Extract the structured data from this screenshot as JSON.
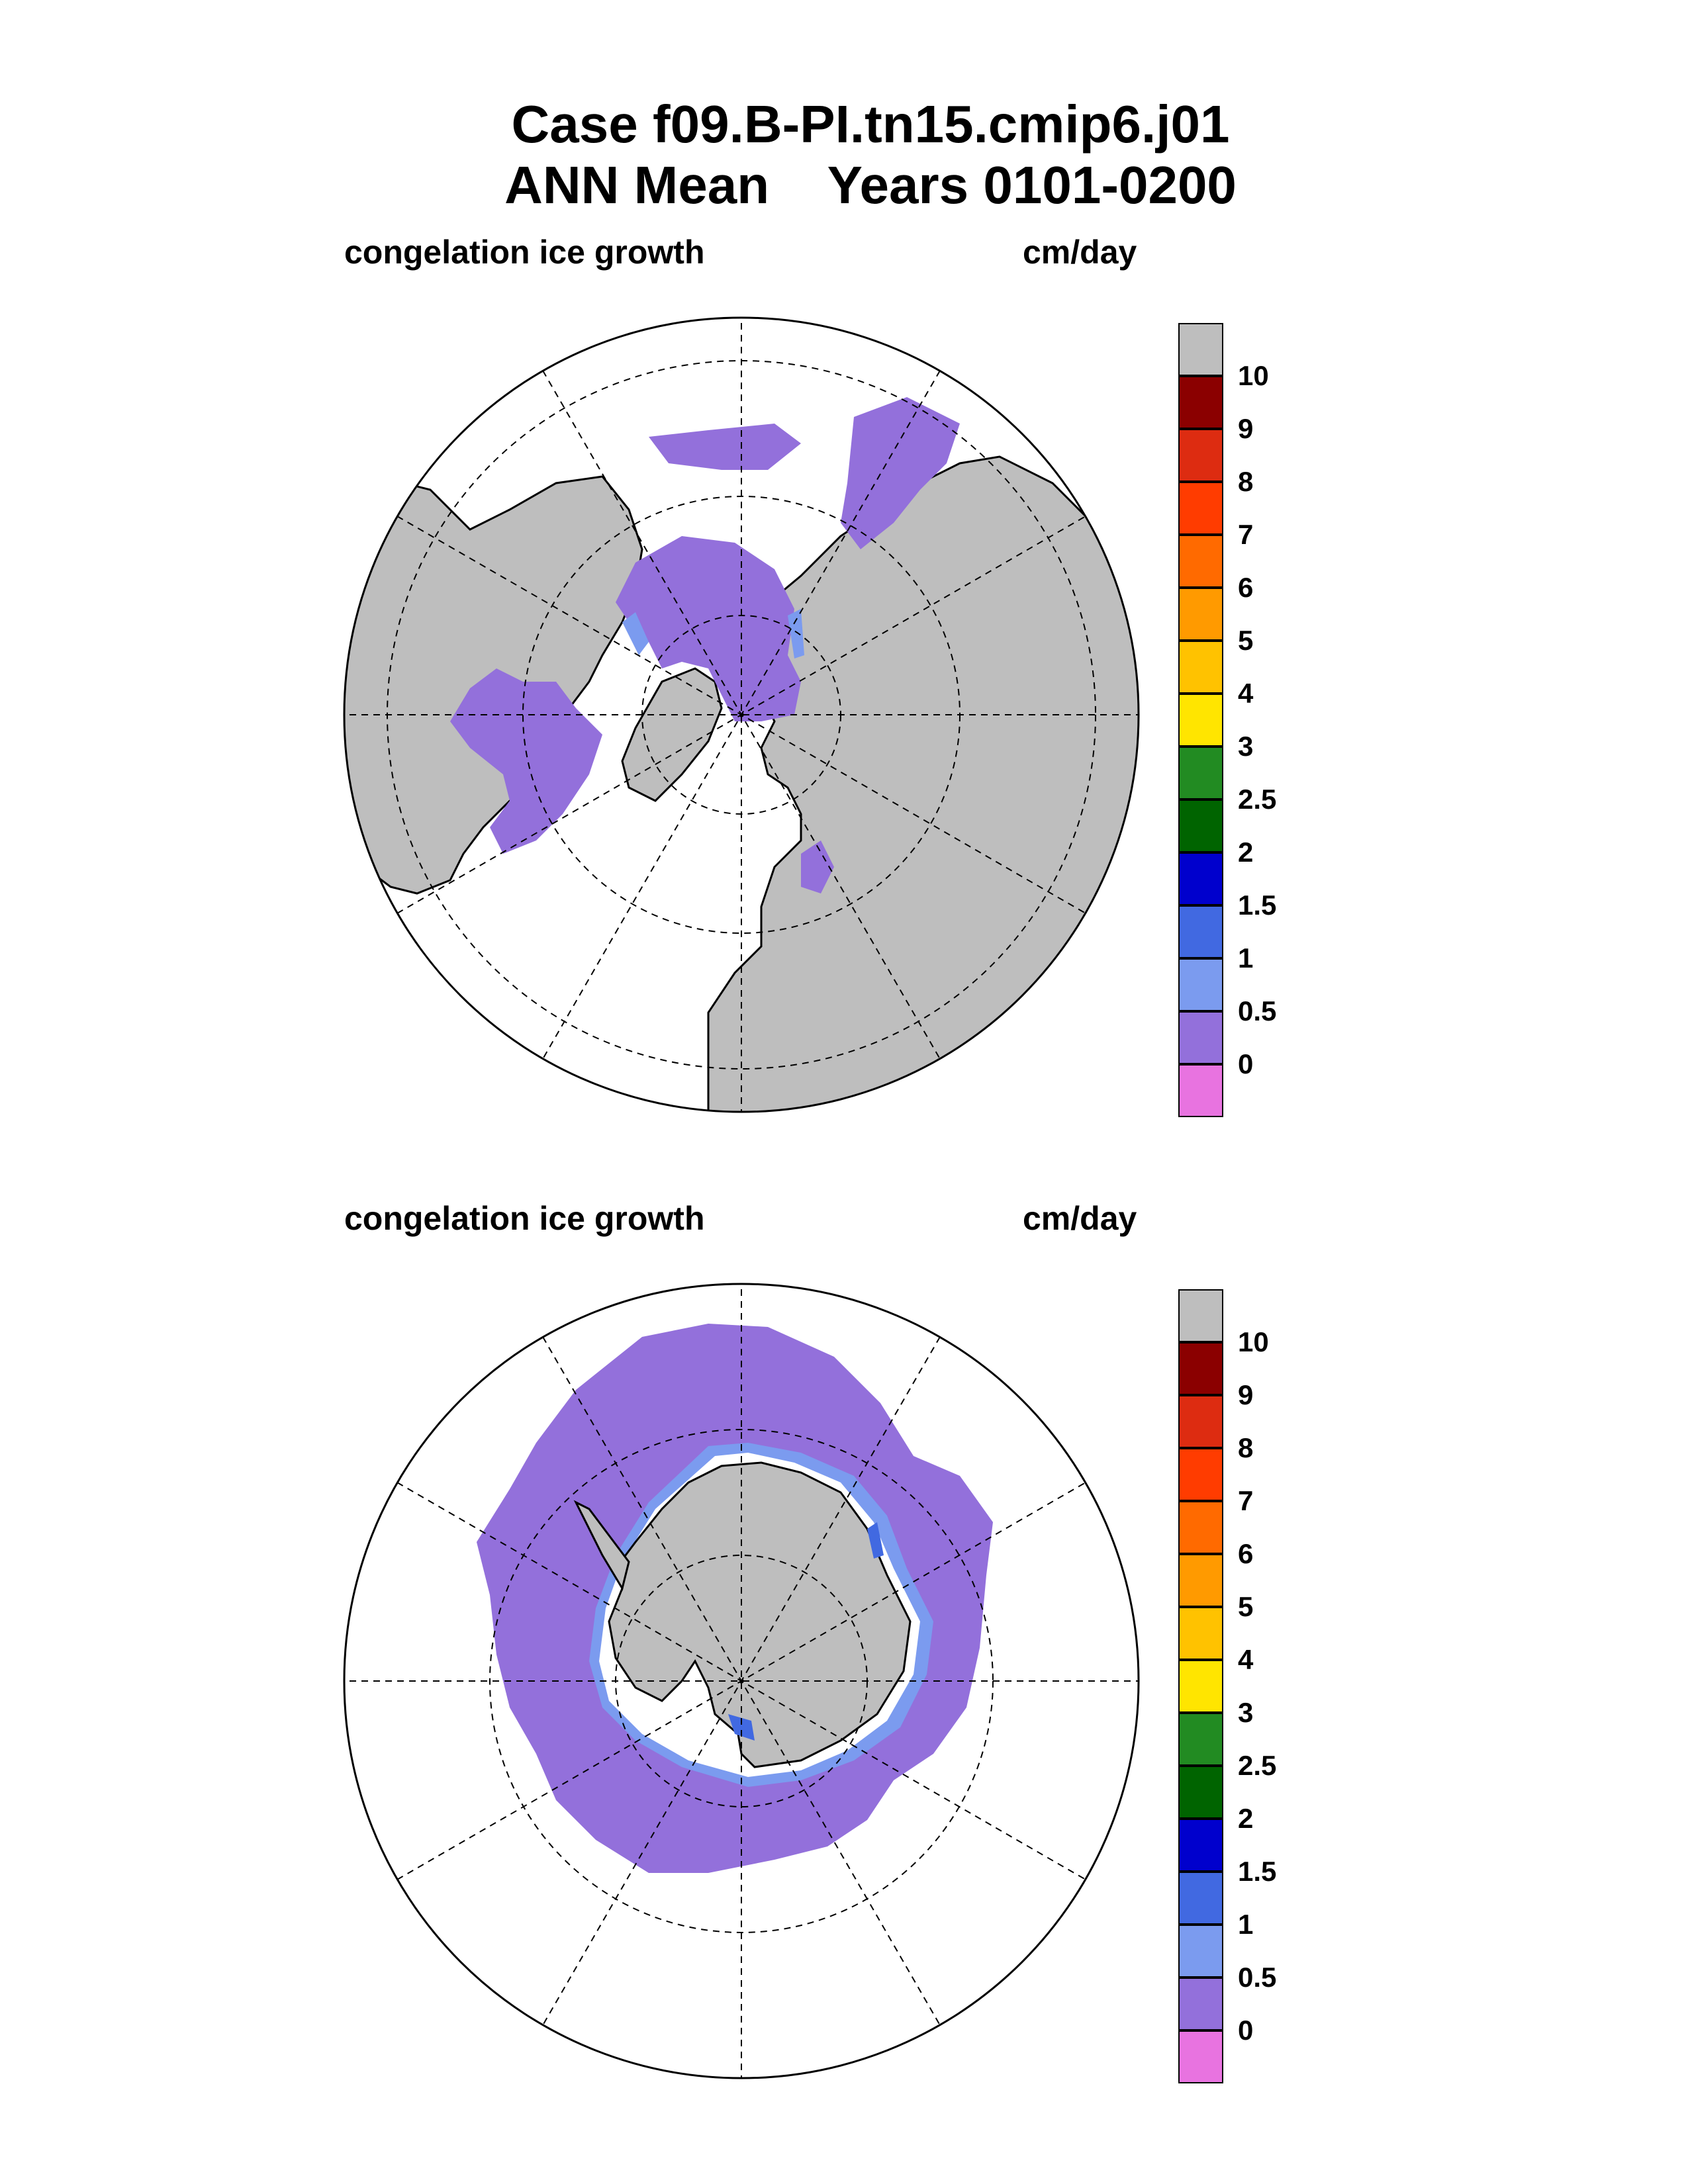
{
  "title": {
    "line1": "Case f09.B-PI.tn15.cmip6.j01",
    "line2": "ANN Mean    Years 0101-0200"
  },
  "panels": [
    {
      "id": "north",
      "hemisphere": "Northern Hemisphere (polar stereographic)",
      "variable": "congelation ice growth",
      "units": "cm/day",
      "dominant_color_bin": "0 to 0.5",
      "colors": {
        "ocean_open": "#ffffff",
        "land": "#bebebe",
        "ice_growth_low": "#9370db",
        "ice_growth_mid": "#7b9bef",
        "coast": "#000000"
      }
    },
    {
      "id": "south",
      "hemisphere": "Southern Hemisphere (polar stereographic)",
      "variable": "congelation ice growth",
      "units": "cm/day",
      "dominant_color_bin": "0 to 0.5",
      "colors": {
        "ocean_open": "#ffffff",
        "land": "#bebebe",
        "ice_growth_low": "#9370db",
        "ice_growth_mid": "#7b9bef",
        "coast": "#000000"
      }
    }
  ],
  "colorbar": {
    "boxes": [
      {
        "color": "#bebebe"
      },
      {
        "color": "#8b0000"
      },
      {
        "color": "#dd2c11"
      },
      {
        "color": "#ff3c00"
      },
      {
        "color": "#ff6a00"
      },
      {
        "color": "#ff9a00"
      },
      {
        "color": "#ffc200"
      },
      {
        "color": "#ffe500"
      },
      {
        "color": "#228b22"
      },
      {
        "color": "#006400"
      },
      {
        "color": "#0000cd"
      },
      {
        "color": "#4169e1"
      },
      {
        "color": "#7b9bef"
      },
      {
        "color": "#9370db"
      },
      {
        "color": "#e873e0"
      }
    ],
    "labels": [
      "10",
      "9",
      "8",
      "7",
      "6",
      "5",
      "4",
      "3",
      "2.5",
      "2",
      "1.5",
      "1",
      "0.5",
      "0"
    ]
  }
}
